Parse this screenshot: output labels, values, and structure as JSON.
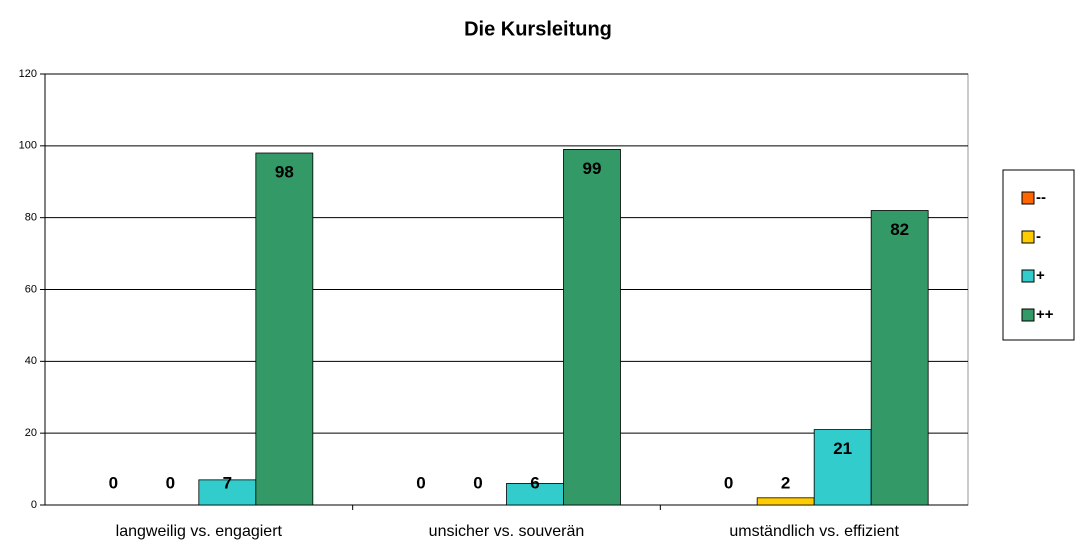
{
  "chart_data": {
    "type": "bar",
    "title": "Die Kursleitung",
    "categories": [
      "langweilig vs. engagiert",
      "unsicher vs. souverän",
      "umständlich vs. effizient"
    ],
    "series": [
      {
        "name": "--",
        "color": "#ff6600",
        "values": [
          0,
          0,
          0
        ]
      },
      {
        "name": "-",
        "color": "#ffcc00",
        "values": [
          0,
          0,
          2
        ]
      },
      {
        "name": "+",
        "color": "#33cccc",
        "values": [
          7,
          6,
          21
        ]
      },
      {
        "name": "++",
        "color": "#339966",
        "values": [
          98,
          99,
          82
        ]
      }
    ],
    "ylim": [
      0,
      120
    ],
    "yticks": [
      0,
      20,
      40,
      60,
      80,
      100,
      120
    ],
    "grid": true,
    "legend": "right"
  }
}
